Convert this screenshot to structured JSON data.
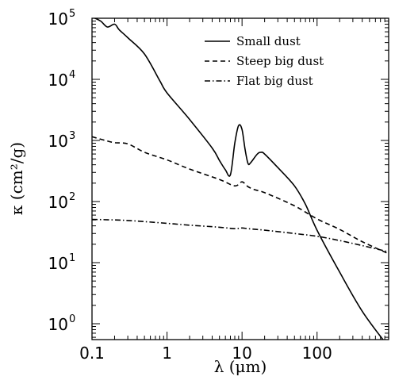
{
  "chart_data": {
    "type": "line",
    "xlabel": "λ (μm)",
    "ylabel": "κ (cm²/g)",
    "x_scale": "log",
    "y_scale": "log",
    "xlim": [
      0.1,
      900
    ],
    "ylim": [
      0.55,
      100000
    ],
    "x_ticks": [
      {
        "value": 0.1,
        "label": "0.1"
      },
      {
        "value": 1,
        "label": "1"
      },
      {
        "value": 10,
        "label": "10"
      },
      {
        "value": 100,
        "label": "100"
      }
    ],
    "y_ticks": [
      {
        "value": 1,
        "base": "10",
        "exp": "0"
      },
      {
        "value": 10,
        "base": "10",
        "exp": "1"
      },
      {
        "value": 100,
        "base": "10",
        "exp": "2"
      },
      {
        "value": 1000,
        "base": "10",
        "exp": "3"
      },
      {
        "value": 10000,
        "base": "10",
        "exp": "4"
      },
      {
        "value": 100000,
        "base": "10",
        "exp": "5"
      }
    ],
    "legend_position": "top-right",
    "grid": false,
    "series": [
      {
        "name": "Small dust",
        "style": "solid",
        "color": "#000000",
        "points": [
          [
            0.1,
            105000
          ],
          [
            0.13,
            90000
          ],
          [
            0.16,
            72000
          ],
          [
            0.2,
            80000
          ],
          [
            0.23,
            65000
          ],
          [
            0.3,
            48000
          ],
          [
            0.5,
            26000
          ],
          [
            0.8,
            9500
          ],
          [
            1,
            6000
          ],
          [
            2,
            2200
          ],
          [
            4,
            750
          ],
          [
            5,
            470
          ],
          [
            6,
            330
          ],
          [
            7,
            275
          ],
          [
            8,
            900
          ],
          [
            9,
            1750
          ],
          [
            10,
            1500
          ],
          [
            11,
            700
          ],
          [
            12,
            420
          ],
          [
            13,
            430
          ],
          [
            16,
            600
          ],
          [
            18,
            640
          ],
          [
            20,
            600
          ],
          [
            30,
            360
          ],
          [
            50,
            180
          ],
          [
            70,
            90
          ],
          [
            100,
            34
          ],
          [
            200,
            7
          ],
          [
            400,
            1.6
          ],
          [
            800,
            0.5
          ]
        ]
      },
      {
        "name": "Steep big dust",
        "style": "dashed",
        "color": "#000000",
        "points": [
          [
            0.1,
            1150
          ],
          [
            0.15,
            1000
          ],
          [
            0.2,
            920
          ],
          [
            0.3,
            880
          ],
          [
            0.5,
            640
          ],
          [
            1,
            480
          ],
          [
            2,
            340
          ],
          [
            5,
            230
          ],
          [
            8,
            180
          ],
          [
            10,
            210
          ],
          [
            12,
            175
          ],
          [
            15,
            155
          ],
          [
            20,
            140
          ],
          [
            50,
            85
          ],
          [
            100,
            52
          ],
          [
            200,
            35
          ],
          [
            400,
            22
          ],
          [
            900,
            14
          ]
        ]
      },
      {
        "name": "Flat big dust",
        "style": "dashdot",
        "color": "#000000",
        "points": [
          [
            0.1,
            51
          ],
          [
            0.2,
            50
          ],
          [
            0.3,
            49
          ],
          [
            0.5,
            47
          ],
          [
            1,
            44
          ],
          [
            2,
            41
          ],
          [
            5,
            38
          ],
          [
            8,
            36
          ],
          [
            10,
            37
          ],
          [
            12,
            36
          ],
          [
            20,
            34
          ],
          [
            50,
            30
          ],
          [
            100,
            27
          ],
          [
            200,
            23
          ],
          [
            400,
            19
          ],
          [
            900,
            15
          ]
        ]
      }
    ]
  }
}
